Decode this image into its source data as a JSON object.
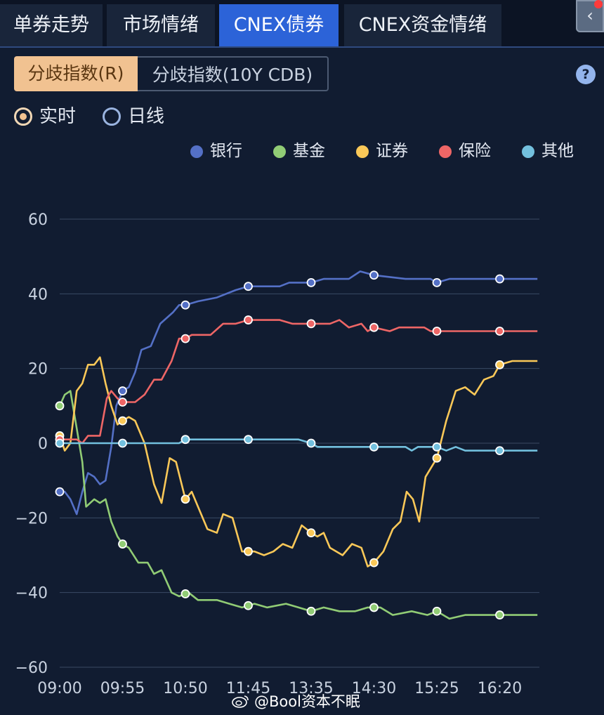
{
  "tabs": [
    {
      "label": "单券走势",
      "active": false
    },
    {
      "label": "市场情绪",
      "active": false
    },
    {
      "label": "CNEX债券",
      "active": true
    },
    {
      "label": "CNEX资金情绪",
      "active": false
    }
  ],
  "segments": [
    {
      "label": "分歧指数(R)",
      "selected": true
    },
    {
      "label": "分歧指数(10Y CDB)",
      "selected": false
    }
  ],
  "help": {
    "label": "?"
  },
  "radios": [
    {
      "label": "实时",
      "checked": true
    },
    {
      "label": "日线",
      "checked": false
    }
  ],
  "colors": {
    "accent": "#2c63d8",
    "银行": "#5470c6",
    "基金": "#91cc75",
    "证券": "#fac858",
    "保险": "#ee6666",
    "其他": "#73c0de"
  },
  "legend": [
    "银行",
    "基金",
    "证券",
    "保险",
    "其他"
  ],
  "watermark": "@Bool资本不眠",
  "chart_data": {
    "type": "line",
    "title": "",
    "xlabel": "",
    "ylabel": "",
    "ylim": [
      -60,
      60
    ],
    "yticks": [
      60,
      40,
      20,
      0,
      -20,
      -40,
      -60
    ],
    "xlim": [
      "09:00",
      "16:50"
    ],
    "xtick_labels": [
      "09:00",
      "09:55",
      "10:50",
      "11:45",
      "13:35",
      "14:30",
      "15:25",
      "16:20"
    ],
    "grid": "horizontal",
    "legend_position": "top-right",
    "x_categories": [
      "09:00",
      "09:55",
      "10:50",
      "11:45",
      "13:35",
      "14:30",
      "15:25",
      "16:20"
    ],
    "series": [
      {
        "name": "银行",
        "color": "#5470c6",
        "points": [
          [
            0,
            -13
          ],
          [
            0.08,
            -13
          ],
          [
            0.17,
            -15
          ],
          [
            0.27,
            -19
          ],
          [
            0.36,
            -13
          ],
          [
            0.45,
            -8
          ],
          [
            0.55,
            -9
          ],
          [
            0.64,
            -11
          ],
          [
            0.73,
            -10
          ],
          [
            0.82,
            -1
          ],
          [
            0.9,
            10
          ],
          [
            1,
            14
          ],
          [
            1.1,
            15
          ],
          [
            1.2,
            19
          ],
          [
            1.3,
            25
          ],
          [
            1.45,
            26
          ],
          [
            1.6,
            32
          ],
          [
            1.8,
            35
          ],
          [
            1.9,
            37
          ],
          [
            2,
            37
          ],
          [
            2.2,
            38
          ],
          [
            2.5,
            39
          ],
          [
            2.8,
            41
          ],
          [
            3,
            42
          ],
          [
            3.5,
            42
          ],
          [
            3.65,
            43
          ],
          [
            4,
            43
          ],
          [
            4.2,
            44
          ],
          [
            4.6,
            44
          ],
          [
            4.78,
            46
          ],
          [
            5,
            45
          ],
          [
            5.5,
            44
          ],
          [
            5.9,
            44
          ],
          [
            6,
            43
          ],
          [
            6.2,
            44
          ],
          [
            7,
            44
          ],
          [
            7.6,
            44
          ]
        ],
        "markers": [
          0,
          1,
          2,
          3,
          4,
          5,
          6,
          7
        ]
      },
      {
        "name": "基金",
        "color": "#91cc75",
        "points": [
          [
            0,
            10
          ],
          [
            0.08,
            13
          ],
          [
            0.17,
            14
          ],
          [
            0.27,
            4
          ],
          [
            0.36,
            -5
          ],
          [
            0.42,
            -17
          ],
          [
            0.55,
            -15
          ],
          [
            0.64,
            -16
          ],
          [
            0.73,
            -15
          ],
          [
            0.82,
            -21
          ],
          [
            0.92,
            -25
          ],
          [
            1,
            -27
          ],
          [
            1.1,
            -28
          ],
          [
            1.25,
            -32
          ],
          [
            1.4,
            -32
          ],
          [
            1.5,
            -35
          ],
          [
            1.62,
            -34
          ],
          [
            1.78,
            -40
          ],
          [
            1.9,
            -41
          ],
          [
            2.05,
            -40
          ],
          [
            2.2,
            -42
          ],
          [
            2.5,
            -42
          ],
          [
            2.7,
            -43
          ],
          [
            2.9,
            -44
          ],
          [
            3.1,
            -43
          ],
          [
            3.3,
            -44
          ],
          [
            3.6,
            -43
          ],
          [
            3.8,
            -44
          ],
          [
            4,
            -45
          ],
          [
            4.2,
            -44
          ],
          [
            4.45,
            -45
          ],
          [
            4.7,
            -45
          ],
          [
            4.9,
            -44
          ],
          [
            5.1,
            -44
          ],
          [
            5.3,
            -46
          ],
          [
            5.6,
            -45
          ],
          [
            5.85,
            -46
          ],
          [
            6,
            -45
          ],
          [
            6.2,
            -47
          ],
          [
            6.45,
            -46
          ],
          [
            7,
            -46
          ],
          [
            7.6,
            -46
          ]
        ],
        "markers": [
          0,
          1,
          2,
          3,
          4,
          5,
          6,
          7
        ]
      },
      {
        "name": "证券",
        "color": "#fac858",
        "points": [
          [
            0,
            2
          ],
          [
            0.08,
            -2
          ],
          [
            0.17,
            0
          ],
          [
            0.27,
            14
          ],
          [
            0.36,
            16
          ],
          [
            0.45,
            21
          ],
          [
            0.55,
            21
          ],
          [
            0.64,
            23
          ],
          [
            0.73,
            16
          ],
          [
            0.82,
            10
          ],
          [
            0.92,
            5
          ],
          [
            1,
            6
          ],
          [
            1.1,
            7
          ],
          [
            1.2,
            6
          ],
          [
            1.35,
            0
          ],
          [
            1.5,
            -11
          ],
          [
            1.62,
            -16
          ],
          [
            1.75,
            -4
          ],
          [
            1.85,
            -5
          ],
          [
            2,
            -15
          ],
          [
            2.1,
            -13
          ],
          [
            2.2,
            -17
          ],
          [
            2.35,
            -23
          ],
          [
            2.5,
            -24
          ],
          [
            2.6,
            -19
          ],
          [
            2.75,
            -20
          ],
          [
            2.9,
            -29
          ],
          [
            3.1,
            -29
          ],
          [
            3.25,
            -30
          ],
          [
            3.4,
            -29
          ],
          [
            3.55,
            -27
          ],
          [
            3.7,
            -28
          ],
          [
            3.85,
            -22
          ],
          [
            4,
            -24
          ],
          [
            4.1,
            -25
          ],
          [
            4.2,
            -24
          ],
          [
            4.3,
            -28
          ],
          [
            4.5,
            -30
          ],
          [
            4.65,
            -27
          ],
          [
            4.8,
            -28
          ],
          [
            4.9,
            -33
          ],
          [
            5,
            -32
          ],
          [
            5.15,
            -29
          ],
          [
            5.3,
            -23
          ],
          [
            5.42,
            -21
          ],
          [
            5.52,
            -13
          ],
          [
            5.62,
            -15
          ],
          [
            5.72,
            -21
          ],
          [
            5.82,
            -9
          ],
          [
            6,
            -4
          ],
          [
            6.15,
            6
          ],
          [
            6.3,
            14
          ],
          [
            6.45,
            15
          ],
          [
            6.6,
            13
          ],
          [
            6.75,
            17
          ],
          [
            6.9,
            18
          ],
          [
            7,
            21
          ],
          [
            7.2,
            22
          ],
          [
            7.4,
            22
          ],
          [
            7.6,
            22
          ]
        ],
        "markers": [
          0,
          1,
          2,
          3,
          4,
          5,
          6,
          7
        ]
      },
      {
        "name": "保险",
        "color": "#ee6666",
        "points": [
          [
            0,
            1
          ],
          [
            0.27,
            1
          ],
          [
            0.36,
            0
          ],
          [
            0.45,
            2
          ],
          [
            0.64,
            2
          ],
          [
            0.75,
            12
          ],
          [
            0.82,
            14
          ],
          [
            0.92,
            12
          ],
          [
            1,
            11
          ],
          [
            1.2,
            11
          ],
          [
            1.35,
            13
          ],
          [
            1.5,
            17
          ],
          [
            1.62,
            17
          ],
          [
            1.78,
            22
          ],
          [
            1.9,
            28
          ],
          [
            2,
            28
          ],
          [
            2.1,
            29
          ],
          [
            2.4,
            29
          ],
          [
            2.6,
            32
          ],
          [
            2.8,
            32
          ],
          [
            3,
            33
          ],
          [
            3.5,
            33
          ],
          [
            3.7,
            32
          ],
          [
            4.3,
            32
          ],
          [
            4.45,
            33
          ],
          [
            4.6,
            31
          ],
          [
            4.8,
            32
          ],
          [
            4.9,
            30
          ],
          [
            5,
            31
          ],
          [
            5.25,
            30
          ],
          [
            5.4,
            31
          ],
          [
            5.8,
            31
          ],
          [
            5.9,
            30
          ],
          [
            6,
            30
          ],
          [
            7.6,
            30
          ]
        ],
        "markers": [
          0,
          1,
          2,
          3,
          4,
          5,
          6,
          7
        ]
      },
      {
        "name": "其他",
        "color": "#73c0de",
        "points": [
          [
            0,
            0
          ],
          [
            1,
            0
          ],
          [
            1.9,
            0
          ],
          [
            2,
            1
          ],
          [
            2.6,
            1
          ],
          [
            3,
            1
          ],
          [
            3.8,
            1
          ],
          [
            4,
            0
          ],
          [
            4.1,
            -1
          ],
          [
            5,
            -1
          ],
          [
            5.5,
            -1
          ],
          [
            5.6,
            -2
          ],
          [
            5.7,
            -1
          ],
          [
            6,
            -1
          ],
          [
            6.15,
            -2
          ],
          [
            6.3,
            -1
          ],
          [
            6.45,
            -2
          ],
          [
            7,
            -2
          ],
          [
            7.6,
            -2
          ]
        ],
        "markers": [
          0,
          1,
          2,
          3,
          4,
          5,
          6,
          7
        ]
      }
    ]
  }
}
